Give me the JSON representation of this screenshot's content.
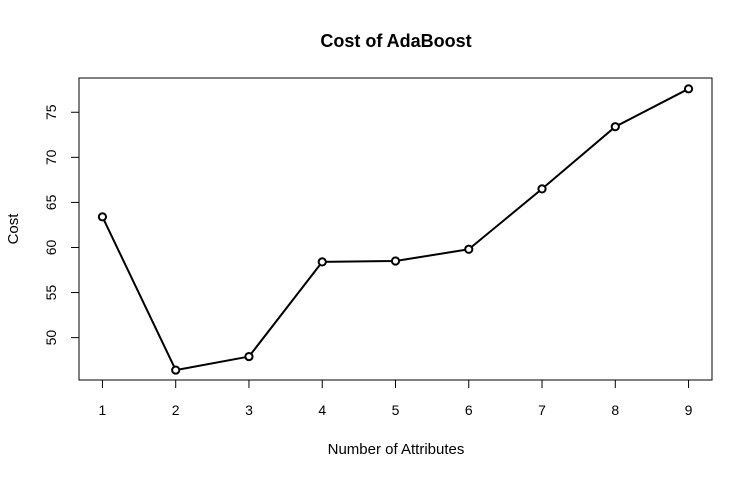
{
  "chart_data": {
    "type": "line",
    "title": "Cost of AdaBoost",
    "xlabel": "Number of Attributes",
    "ylabel": "Cost",
    "x": [
      1,
      2,
      3,
      4,
      5,
      6,
      7,
      8,
      9
    ],
    "x_ticks": [
      "1",
      "2",
      "3",
      "4",
      "5",
      "6",
      "7",
      "8",
      "9"
    ],
    "y_ticks": [
      "50",
      "55",
      "60",
      "65",
      "70",
      "75"
    ],
    "xlim": [
      0.68,
      9.32
    ],
    "ylim": [
      45.3,
      78.8
    ],
    "series": [
      {
        "values": [
          63.4,
          46.4,
          47.9,
          58.4,
          58.5,
          59.8,
          66.5,
          73.4,
          77.6
        ]
      }
    ],
    "marker": "open-circle",
    "line_color": "#000000",
    "grid": false,
    "legend": "none"
  }
}
